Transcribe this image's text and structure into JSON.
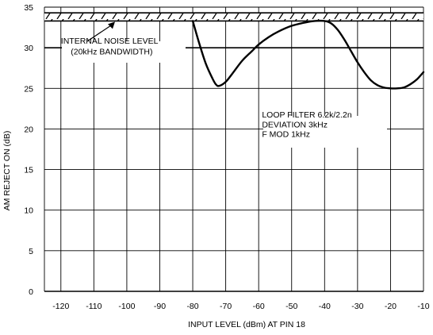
{
  "chart_data": {
    "type": "line",
    "xlabel": "INPUT LEVEL (dBm) AT PIN 18",
    "ylabel": "AM REJECT ON (dB)",
    "xlim": [
      -125,
      -10
    ],
    "ylim": [
      0,
      35
    ],
    "x_ticks": [
      -120,
      -110,
      -100,
      -90,
      -80,
      -70,
      -60,
      -50,
      -40,
      -30,
      -20,
      -10
    ],
    "y_ticks": [
      0,
      5,
      10,
      15,
      20,
      25,
      30,
      35
    ],
    "grid": true,
    "hatched_band": {
      "y_from": 33.3,
      "y_to": 34.3
    },
    "series": [
      {
        "x": [
          -80,
          -78,
          -76,
          -74,
          -73,
          -72,
          -70,
          -68,
          -65,
          -62,
          -60,
          -57,
          -54,
          -50,
          -46,
          -43,
          -40,
          -38,
          -36,
          -34,
          -32,
          -30,
          -28,
          -26,
          -24,
          -22,
          -20,
          -18,
          -16,
          -14,
          -12,
          -10
        ],
        "y": [
          33.3,
          30.5,
          28.0,
          26.2,
          25.5,
          25.3,
          25.8,
          26.8,
          28.4,
          29.6,
          30.4,
          31.3,
          32.0,
          32.7,
          33.1,
          33.3,
          33.3,
          33.0,
          32.2,
          31.0,
          29.6,
          28.2,
          27.0,
          26.0,
          25.4,
          25.1,
          25.0,
          25.0,
          25.1,
          25.5,
          26.1,
          27.0
        ]
      }
    ],
    "annotations": [
      {
        "text": "INTERNAL NOISE LEVEL",
        "x": -120,
        "y": 30.5
      },
      {
        "text": "(20kHz BANDWIDTH)",
        "x": -117,
        "y": 29.2
      },
      {
        "text": "LOOP FILTER 6.2k/2.2n",
        "x": -59,
        "y": 21.4
      },
      {
        "text": "DEVIATION 3kHz",
        "x": -59,
        "y": 20.2
      },
      {
        "text": "F MOD 1kHz",
        "x": -59,
        "y": 19.0
      }
    ]
  }
}
